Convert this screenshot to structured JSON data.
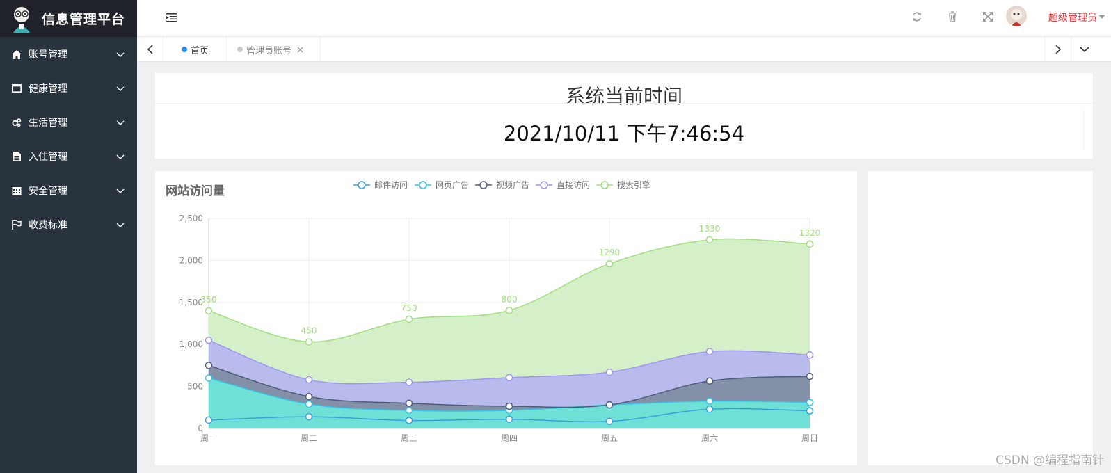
{
  "app": {
    "title": "信息管理平台"
  },
  "sidebar": {
    "items": [
      {
        "label": "账号管理",
        "icon": "home-icon"
      },
      {
        "label": "健康管理",
        "icon": "window-icon"
      },
      {
        "label": "生活管理",
        "icon": "gears-icon"
      },
      {
        "label": "入住管理",
        "icon": "file-icon"
      },
      {
        "label": "安全管理",
        "icon": "calendar-icon"
      },
      {
        "label": "收费标准",
        "icon": "flag-icon"
      }
    ]
  },
  "header": {
    "icons": [
      "menu-toggle-icon",
      "refresh-icon",
      "trash-icon",
      "fullscreen-icon"
    ],
    "user": {
      "name": "超级管理员"
    }
  },
  "tabs": [
    {
      "label": "首页",
      "active": true,
      "dot_color": "#2d8cf0"
    },
    {
      "label": "管理员账号",
      "active": false,
      "dot_color": "#cccccc",
      "closable": true
    }
  ],
  "time_card": {
    "title": "系统当前时间",
    "value": "2021/10/11 下午7:46:54"
  },
  "visits_card": {
    "title": "网站访问量"
  },
  "chart_data": {
    "type": "area",
    "stacked": true,
    "smooth": true,
    "categories": [
      "周一",
      "周二",
      "周三",
      "周四",
      "周五",
      "周六",
      "周日"
    ],
    "ylim": [
      0,
      2500
    ],
    "yticks": [
      "0",
      "500",
      "1,000",
      "1,500",
      "2,000",
      "2,500"
    ],
    "grid": true,
    "legend_position": "top-center",
    "series": [
      {
        "name": "邮件访问",
        "values": [
          100,
          140,
          95,
          110,
          85,
          230,
          210
        ],
        "color": "#37a2da"
      },
      {
        "name": "网页广告",
        "values": [
          500,
          150,
          120,
          105,
          195,
          95,
          100
        ],
        "color": "#32c5e9"
      },
      {
        "name": "视频广告",
        "values": [
          150,
          90,
          85,
          50,
          0,
          240,
          310
        ],
        "color": "#4f5d7a"
      },
      {
        "name": "直接访问",
        "values": [
          300,
          200,
          250,
          340,
          390,
          350,
          255
        ],
        "color": "#9d96f5"
      },
      {
        "name": "搜索引擎",
        "values": [
          350,
          450,
          750,
          800,
          1290,
          1330,
          1320
        ],
        "color": "#a0e07e",
        "labels": [
          "350",
          "450",
          "750",
          "800",
          "1290",
          "1330",
          "1320"
        ]
      }
    ],
    "fill_colors": [
      "#6fe0d6",
      "#6fe0d6",
      "#8390a7",
      "#b8bbec",
      "#d5f0c8"
    ]
  },
  "watermark": "CSDN @编程指南针"
}
